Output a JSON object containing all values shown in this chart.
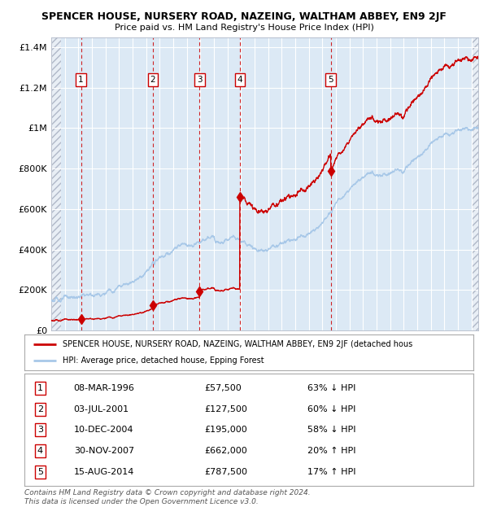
{
  "title": "SPENCER HOUSE, NURSERY ROAD, NAZEING, WALTHAM ABBEY, EN9 2JF",
  "subtitle": "Price paid vs. HM Land Registry's House Price Index (HPI)",
  "xlim": [
    1994.0,
    2025.5
  ],
  "ylim": [
    0,
    1450000
  ],
  "yticks": [
    0,
    200000,
    400000,
    600000,
    800000,
    1000000,
    1200000,
    1400000
  ],
  "ytick_labels": [
    "£0",
    "£200K",
    "£400K",
    "£600K",
    "£800K",
    "£1M",
    "£1.2M",
    "£1.4M"
  ],
  "background_color": "#dce9f5",
  "grid_color": "#ffffff",
  "sale_color": "#cc0000",
  "hpi_color": "#a8c8e8",
  "sale_label": "SPENCER HOUSE, NURSERY ROAD, NAZEING, WALTHAM ABBEY, EN9 2JF (detached hous",
  "hpi_label": "HPI: Average price, detached house, Epping Forest",
  "transactions": [
    {
      "num": 1,
      "date": "08-MAR-1996",
      "year": 1996.19,
      "price": 57500,
      "pct": "63% ↓ HPI"
    },
    {
      "num": 2,
      "date": "03-JUL-2001",
      "year": 2001.5,
      "price": 127500,
      "pct": "60% ↓ HPI"
    },
    {
      "num": 3,
      "date": "10-DEC-2004",
      "year": 2004.94,
      "price": 195000,
      "pct": "58% ↓ HPI"
    },
    {
      "num": 4,
      "date": "30-NOV-2007",
      "year": 2007.91,
      "price": 662000,
      "pct": "20% ↑ HPI"
    },
    {
      "num": 5,
      "date": "15-AUG-2014",
      "year": 2014.62,
      "price": 787500,
      "pct": "17% ↑ HPI"
    }
  ],
  "footer": "Contains HM Land Registry data © Crown copyright and database right 2024.\nThis data is licensed under the Open Government Licence v3.0.",
  "hpi_base_curve": [
    [
      1994.0,
      150000
    ],
    [
      1995.0,
      158000
    ],
    [
      1996.0,
      163000
    ],
    [
      1997.0,
      175000
    ],
    [
      1998.0,
      195000
    ],
    [
      1999.0,
      225000
    ],
    [
      2000.0,
      260000
    ],
    [
      2001.0,
      300000
    ],
    [
      2002.0,
      355000
    ],
    [
      2003.0,
      390000
    ],
    [
      2004.0,
      415000
    ],
    [
      2005.0,
      430000
    ],
    [
      2006.0,
      450000
    ],
    [
      2007.0,
      470000
    ],
    [
      2007.5,
      480000
    ],
    [
      2008.5,
      430000
    ],
    [
      2009.5,
      410000
    ],
    [
      2010.0,
      425000
    ],
    [
      2011.0,
      435000
    ],
    [
      2012.0,
      445000
    ],
    [
      2013.0,
      475000
    ],
    [
      2014.0,
      530000
    ],
    [
      2015.0,
      620000
    ],
    [
      2016.0,
      700000
    ],
    [
      2017.0,
      740000
    ],
    [
      2018.0,
      760000
    ],
    [
      2019.0,
      780000
    ],
    [
      2020.0,
      800000
    ],
    [
      2021.0,
      870000
    ],
    [
      2022.0,
      950000
    ],
    [
      2023.0,
      970000
    ],
    [
      2024.0,
      980000
    ],
    [
      2025.5,
      990000
    ]
  ]
}
